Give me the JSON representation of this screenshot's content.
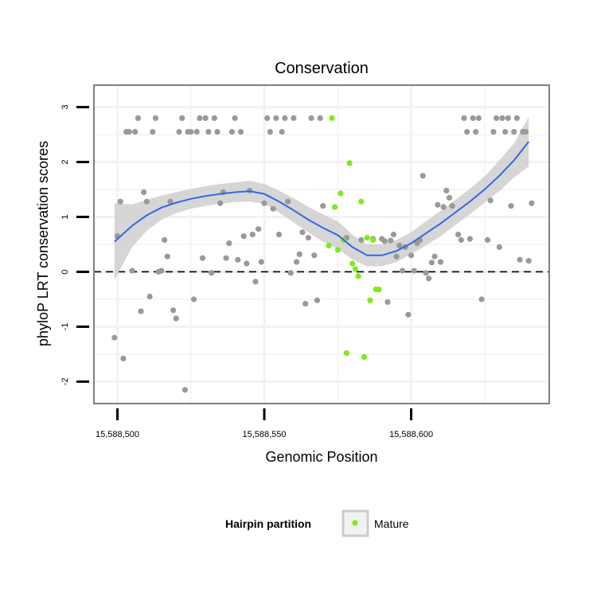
{
  "chart_data": {
    "type": "scatter",
    "title": "Conservation",
    "xlabel": "Genomic Position",
    "ylabel": "phyloP LRT conservation scores",
    "xlim": [
      15588492,
      15588647
    ],
    "ylim": [
      -2.4,
      3.4
    ],
    "x_ticks": [
      15588500,
      15588550,
      15588600
    ],
    "x_tick_labels": [
      "15,588,500",
      "15,588,550",
      "15,588,600"
    ],
    "y_ticks": [
      -2,
      -1,
      0,
      1,
      2,
      3
    ],
    "y_tick_labels": [
      "-2",
      "-1",
      "0",
      "1",
      "2",
      "3"
    ],
    "reference_line": {
      "y": 0,
      "style": "dashed"
    },
    "legend": {
      "title": "Hairpin partition",
      "entries": [
        {
          "label": "Mature",
          "color": "#7fea1a"
        }
      ],
      "position": "bottom"
    },
    "colors": {
      "other": "#999999",
      "mature": "#7fea1a",
      "smooth_line": "#3366e6",
      "ribbon": "#cccccc",
      "panel_border": "#808080",
      "grid": "#f2f2f2"
    },
    "series": [
      {
        "name": "Other",
        "points": [
          [
            15588499,
            -1.2
          ],
          [
            15588500,
            0.65
          ],
          [
            15588501,
            1.28
          ],
          [
            15588502,
            -1.58
          ],
          [
            15588503,
            2.55
          ],
          [
            15588504,
            2.55
          ],
          [
            15588505,
            0.02
          ],
          [
            15588506,
            2.55
          ],
          [
            15588507,
            2.8
          ],
          [
            15588508,
            -0.72
          ],
          [
            15588509,
            1.45
          ],
          [
            15588510,
            1.28
          ],
          [
            15588511,
            -0.45
          ],
          [
            15588512,
            2.55
          ],
          [
            15588513,
            2.8
          ],
          [
            15588514,
            0.0
          ],
          [
            15588515,
            0.02
          ],
          [
            15588516,
            0.58
          ],
          [
            15588517,
            0.28
          ],
          [
            15588518,
            1.28
          ],
          [
            15588519,
            -0.7
          ],
          [
            15588520,
            -0.85
          ],
          [
            15588521,
            2.55
          ],
          [
            15588522,
            2.8
          ],
          [
            15588523,
            -2.15
          ],
          [
            15588524,
            2.55
          ],
          [
            15588525,
            2.55
          ],
          [
            15588526,
            -0.5
          ],
          [
            15588527,
            2.55
          ],
          [
            15588528,
            2.8
          ],
          [
            15588529,
            0.25
          ],
          [
            15588530,
            2.8
          ],
          [
            15588531,
            2.55
          ],
          [
            15588532,
            -0.02
          ],
          [
            15588533,
            2.8
          ],
          [
            15588534,
            2.55
          ],
          [
            15588535,
            1.25
          ],
          [
            15588536,
            1.45
          ],
          [
            15588537,
            0.25
          ],
          [
            15588538,
            0.52
          ],
          [
            15588539,
            2.55
          ],
          [
            15588540,
            2.8
          ],
          [
            15588541,
            0.22
          ],
          [
            15588542,
            2.55
          ],
          [
            15588543,
            0.65
          ],
          [
            15588544,
            0.15
          ],
          [
            15588545,
            1.48
          ],
          [
            15588546,
            0.68
          ],
          [
            15588547,
            -0.18
          ],
          [
            15588548,
            0.78
          ],
          [
            15588549,
            0.18
          ],
          [
            15588550,
            1.25
          ],
          [
            15588551,
            2.8
          ],
          [
            15588552,
            2.55
          ],
          [
            15588553,
            1.15
          ],
          [
            15588554,
            2.8
          ],
          [
            15588555,
            0.68
          ],
          [
            15588556,
            2.55
          ],
          [
            15588557,
            2.8
          ],
          [
            15588558,
            1.28
          ],
          [
            15588559,
            -0.02
          ],
          [
            15588560,
            2.8
          ],
          [
            15588561,
            0.18
          ],
          [
            15588562,
            0.32
          ],
          [
            15588563,
            0.72
          ],
          [
            15588564,
            -0.58
          ],
          [
            15588565,
            0.62
          ],
          [
            15588566,
            2.8
          ],
          [
            15588567,
            0.3
          ],
          [
            15588568,
            -0.52
          ],
          [
            15588569,
            2.8
          ],
          [
            15588570,
            1.2
          ],
          [
            15588578,
            0.62
          ],
          [
            15588583,
            0.58
          ],
          [
            15588587,
            0.6
          ],
          [
            15588590,
            0.6
          ],
          [
            15588591,
            0.56
          ],
          [
            15588592,
            -0.55
          ],
          [
            15588593,
            0.57
          ],
          [
            15588594,
            0.68
          ],
          [
            15588595,
            0.28
          ],
          [
            15588596,
            0.48
          ],
          [
            15588597,
            0.02
          ],
          [
            15588598,
            0.45
          ],
          [
            15588599,
            -0.78
          ],
          [
            15588600,
            0.3
          ],
          [
            15588601,
            0.02
          ],
          [
            15588602,
            0.52
          ],
          [
            15588603,
            0.58
          ],
          [
            15588604,
            1.75
          ],
          [
            15588605,
            -0.02
          ],
          [
            15588606,
            -0.12
          ],
          [
            15588607,
            0.17
          ],
          [
            15588608,
            0.28
          ],
          [
            15588609,
            1.22
          ],
          [
            15588610,
            0.18
          ],
          [
            15588611,
            1.18
          ],
          [
            15588612,
            1.48
          ],
          [
            15588613,
            1.35
          ],
          [
            15588614,
            1.2
          ],
          [
            15588616,
            0.68
          ],
          [
            15588617,
            0.58
          ],
          [
            15588618,
            2.8
          ],
          [
            15588619,
            2.55
          ],
          [
            15588620,
            0.6
          ],
          [
            15588621,
            2.8
          ],
          [
            15588622,
            2.55
          ],
          [
            15588623,
            2.8
          ],
          [
            15588624,
            -0.5
          ],
          [
            15588626,
            0.58
          ],
          [
            15588627,
            1.3
          ],
          [
            15588628,
            2.55
          ],
          [
            15588629,
            2.8
          ],
          [
            15588630,
            0.45
          ],
          [
            15588631,
            2.8
          ],
          [
            15588632,
            2.55
          ],
          [
            15588633,
            2.8
          ],
          [
            15588634,
            1.2
          ],
          [
            15588635,
            2.55
          ],
          [
            15588636,
            2.8
          ],
          [
            15588637,
            0.22
          ],
          [
            15588638,
            2.55
          ],
          [
            15588639,
            2.55
          ],
          [
            15588640,
            0.2
          ],
          [
            15588641,
            1.25
          ]
        ]
      },
      {
        "name": "Mature",
        "points": [
          [
            15588572,
            0.48
          ],
          [
            15588573,
            2.8
          ],
          [
            15588574,
            1.18
          ],
          [
            15588575,
            0.4
          ],
          [
            15588576,
            1.43
          ],
          [
            15588577,
            0.58
          ],
          [
            15588578,
            -1.48
          ],
          [
            15588579,
            1.98
          ],
          [
            15588580,
            0.15
          ],
          [
            15588581,
            0.05
          ],
          [
            15588582,
            -0.08
          ],
          [
            15588583,
            1.28
          ],
          [
            15588584,
            -1.55
          ],
          [
            15588585,
            0.62
          ],
          [
            15588586,
            -0.52
          ],
          [
            15588587,
            0.58
          ],
          [
            15588588,
            -0.32
          ],
          [
            15588589,
            -0.32
          ]
        ]
      }
    ],
    "smooth": {
      "method": "loess",
      "x": [
        15588499,
        15588505,
        15588510,
        15588515,
        15588520,
        15588525,
        15588530,
        15588535,
        15588540,
        15588545,
        15588550,
        15588555,
        15588560,
        15588565,
        15588570,
        15588575,
        15588580,
        15588585,
        15588590,
        15588595,
        15588600,
        15588605,
        15588610,
        15588615,
        15588620,
        15588625,
        15588630,
        15588635,
        15588640
      ],
      "y": [
        0.55,
        0.84,
        1.03,
        1.17,
        1.26,
        1.33,
        1.38,
        1.42,
        1.45,
        1.47,
        1.42,
        1.28,
        1.12,
        0.95,
        0.8,
        0.67,
        0.45,
        0.3,
        0.3,
        0.38,
        0.52,
        0.7,
        0.88,
        1.08,
        1.28,
        1.5,
        1.75,
        2.03,
        2.37
      ],
      "lower": [
        -0.15,
        0.45,
        0.75,
        0.95,
        1.07,
        1.15,
        1.2,
        1.24,
        1.27,
        1.28,
        1.24,
        1.08,
        0.9,
        0.72,
        0.55,
        0.42,
        0.22,
        0.1,
        0.1,
        0.18,
        0.32,
        0.48,
        0.65,
        0.85,
        1.05,
        1.26,
        1.47,
        1.72,
        1.92
      ],
      "upper": [
        1.25,
        1.23,
        1.31,
        1.39,
        1.45,
        1.51,
        1.56,
        1.6,
        1.63,
        1.66,
        1.6,
        1.48,
        1.34,
        1.18,
        1.05,
        0.92,
        0.68,
        0.5,
        0.5,
        0.58,
        0.72,
        0.92,
        1.11,
        1.31,
        1.51,
        1.74,
        2.03,
        2.34,
        2.82
      ]
    }
  }
}
